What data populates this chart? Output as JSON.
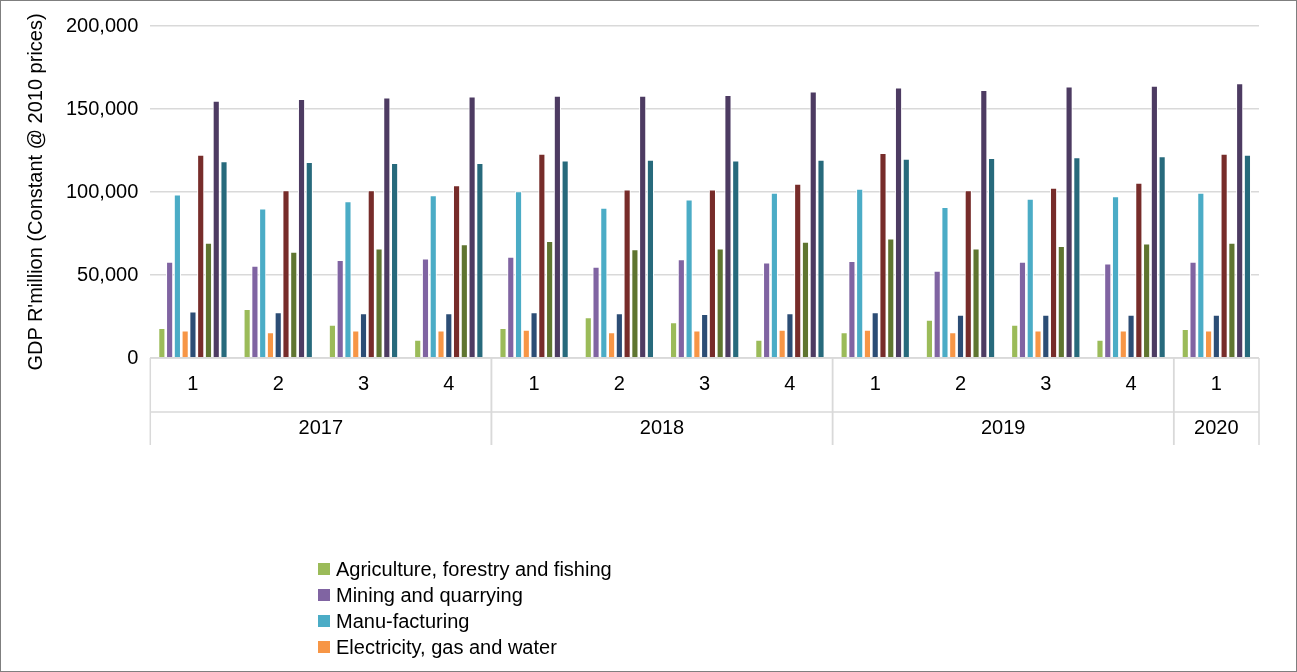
{
  "chart_data": {
    "type": "bar",
    "ylabel": "GDP R'million (Constant @ 2010 prices)",
    "categories": [
      "1",
      "2",
      "3",
      "4",
      "1",
      "2",
      "3",
      "4",
      "1",
      "2",
      "3",
      "4",
      "1"
    ],
    "annotations": [
      "2017",
      "2018",
      "2019",
      "2020"
    ],
    "ylim": [
      0,
      200000
    ],
    "yticks": [
      {
        "value": 0,
        "label": "0"
      },
      {
        "value": 50000,
        "label": "50,000"
      },
      {
        "value": 100000,
        "label": "100,000"
      },
      {
        "value": 150000,
        "label": "150,000"
      },
      {
        "value": 200000,
        "label": "200,000"
      }
    ],
    "grid": "y",
    "legend": "bottom",
    "series": [
      {
        "name": "Agriculture, forestry and fishing",
        "color": "#9bbb59",
        "values": [
          18000,
          29500,
          20000,
          11000,
          18000,
          24500,
          21500,
          11000,
          15500,
          23000,
          20000,
          11000,
          17500
        ]
      },
      {
        "name": "Mining and quarrying",
        "color": "#8064a2",
        "values": [
          58000,
          55500,
          59000,
          60000,
          61000,
          55000,
          59500,
          57500,
          58500,
          52500,
          58000,
          57000,
          58000
        ]
      },
      {
        "name": "Manu-facturing",
        "color": "#4bacc6",
        "values": [
          98500,
          90000,
          94500,
          98000,
          100500,
          90500,
          95500,
          99500,
          102000,
          91000,
          96000,
          97500,
          99500
        ]
      },
      {
        "name": "Electricity, gas and water",
        "color": "#f79646",
        "values": [
          16500,
          15500,
          16500,
          16500,
          17000,
          15500,
          16500,
          17000,
          17000,
          15500,
          16500,
          16500,
          16500
        ]
      },
      {
        "color": "#2c4d75",
        "values": [
          28000,
          27500,
          27000,
          27000,
          27500,
          27000,
          26500,
          27000,
          27500,
          26000,
          26000,
          26000,
          26000
        ]
      },
      {
        "color": "#772c2a",
        "values": [
          122500,
          101000,
          101000,
          104000,
          123000,
          101500,
          101500,
          105000,
          123500,
          101000,
          102500,
          105500,
          123000
        ]
      },
      {
        "color": "#5f7530",
        "values": [
          69500,
          64000,
          66000,
          68500,
          70500,
          65500,
          66000,
          70000,
          72000,
          66000,
          67500,
          69000,
          69500
        ]
      },
      {
        "color": "#4d3b62",
        "values": [
          155000,
          156000,
          157000,
          157500,
          158000,
          158000,
          158500,
          160500,
          163000,
          161500,
          163500,
          164000,
          165500
        ]
      },
      {
        "color": "#276a7c",
        "values": [
          118500,
          118000,
          117500,
          117500,
          119000,
          119500,
          119000,
          119500,
          120000,
          120500,
          121000,
          121500,
          122500
        ]
      }
    ]
  }
}
